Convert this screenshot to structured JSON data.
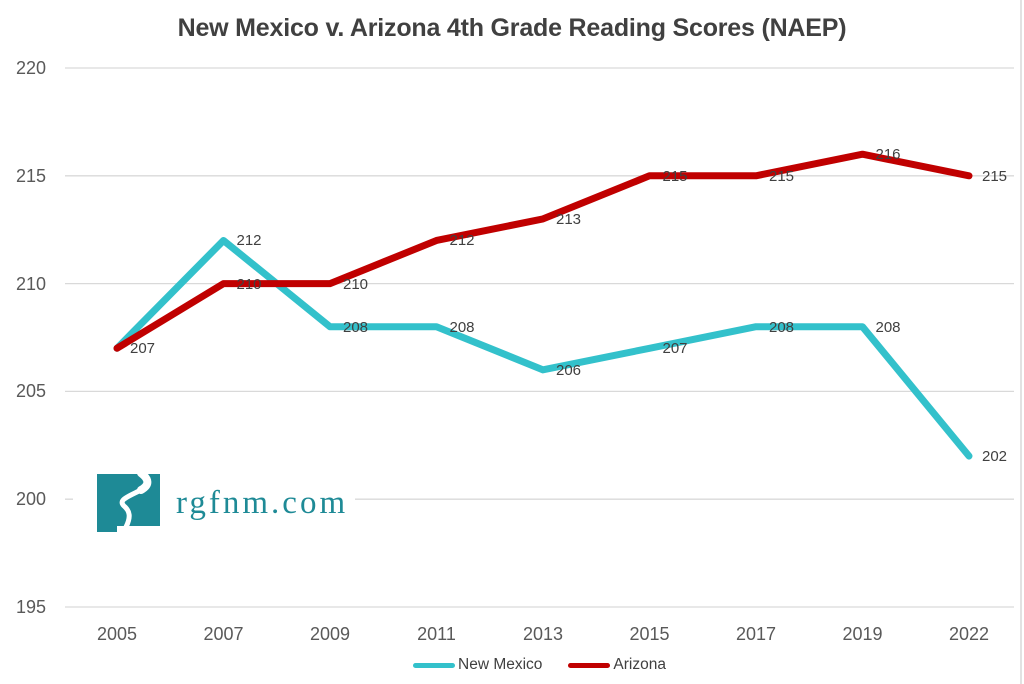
{
  "title": "New Mexico v. Arizona 4th Grade Reading Scores (NAEP)",
  "watermark": {
    "text": "rgfnm.com",
    "color": "#1E8A96"
  },
  "chart_data": {
    "type": "line",
    "title": "New Mexico v. Arizona 4th Grade Reading Scores (NAEP)",
    "categories": [
      "2005",
      "2007",
      "2009",
      "2011",
      "2013",
      "2015",
      "2017",
      "2019",
      "2022"
    ],
    "series": [
      {
        "name": "New Mexico",
        "color": "#33C1CB",
        "values": [
          207,
          212,
          208,
          208,
          206,
          207,
          208,
          208,
          202
        ],
        "hidden_value_labels": []
      },
      {
        "name": "Arizona",
        "color": "#C00000",
        "values": [
          207,
          210,
          210,
          212,
          213,
          215,
          215,
          216,
          215
        ],
        "hidden_value_labels": [
          0
        ]
      }
    ],
    "xlabel": "",
    "ylabel": "",
    "ylim": [
      195,
      220
    ],
    "yticks": [
      195,
      200,
      205,
      210,
      215,
      220
    ],
    "grid": true,
    "data_labels": true,
    "legend_position": "bottom"
  }
}
